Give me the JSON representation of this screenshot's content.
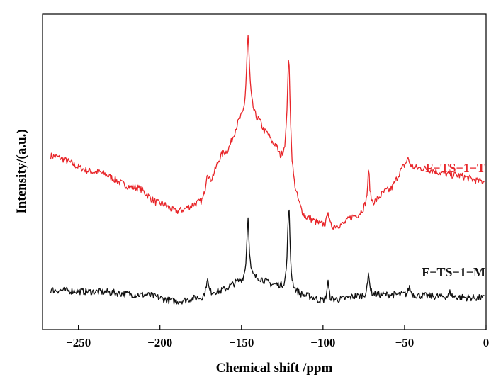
{
  "chart_data": {
    "type": "line",
    "title": "",
    "xlabel": "Chemical shift /ppm",
    "ylabel": "Intensity/(a.u.)",
    "xlim": [
      -272,
      0
    ],
    "ylim": [
      0,
      100
    ],
    "x_ticks": [
      -250,
      -200,
      -150,
      -100,
      -50,
      0
    ],
    "x_tick_labels": [
      "−250",
      "−200",
      "−150",
      "−100",
      "−50",
      "0"
    ],
    "grid": false,
    "legend": "none",
    "series": [
      {
        "name": "F−TS−1−T",
        "color": "#e8262a",
        "baseline": [
          [
            -267,
            55
          ],
          [
            -240,
            50
          ],
          [
            -215,
            45
          ],
          [
            -200,
            40
          ],
          [
            -190,
            37.5
          ],
          [
            -175,
            40
          ],
          [
            -160,
            56
          ],
          [
            -150,
            66
          ],
          [
            -145,
            69
          ],
          [
            -140,
            66
          ],
          [
            -135,
            62
          ],
          [
            -130,
            58
          ],
          [
            -125,
            52
          ],
          [
            -120,
            43
          ],
          [
            -110,
            35
          ],
          [
            -100,
            33
          ],
          [
            -97,
            32
          ],
          [
            -90,
            33
          ],
          [
            -80,
            36
          ],
          [
            -72,
            39
          ],
          [
            -60,
            44
          ],
          [
            -50,
            51
          ],
          [
            -40,
            51
          ],
          [
            -20,
            49
          ],
          [
            -2,
            47
          ]
        ],
        "peaks": [
          [
            -171,
            7,
            1.2
          ],
          [
            -146,
            24,
            1.1
          ],
          [
            -121,
            41,
            1.3
          ],
          [
            -97,
            6,
            0.7
          ],
          [
            -72,
            11,
            0.8
          ],
          [
            -48,
            3,
            1.5
          ]
        ]
      },
      {
        "name": "F−TS−1−M",
        "color": "#111111",
        "baseline": [
          [
            -267,
            12.5
          ],
          [
            -240,
            12
          ],
          [
            -210,
            11
          ],
          [
            -190,
            9
          ],
          [
            -175,
            10
          ],
          [
            -165,
            12
          ],
          [
            -150,
            15
          ],
          [
            -140,
            16
          ],
          [
            -130,
            14
          ],
          [
            -120,
            12
          ],
          [
            -110,
            10.5
          ],
          [
            -100,
            9
          ],
          [
            -90,
            9.5
          ],
          [
            -80,
            10.5
          ],
          [
            -70,
            11
          ],
          [
            -50,
            11
          ],
          [
            -30,
            10.5
          ],
          [
            -2,
            10
          ]
        ],
        "peaks": [
          [
            -171,
            5.5,
            0.8
          ],
          [
            -146,
            20,
            0.9
          ],
          [
            -121,
            27,
            0.9
          ],
          [
            -97,
            6,
            0.7
          ],
          [
            -72,
            7,
            0.7
          ],
          [
            -47,
            2.5,
            0.8
          ],
          [
            -22,
            1.5,
            0.6
          ]
        ]
      }
    ]
  }
}
